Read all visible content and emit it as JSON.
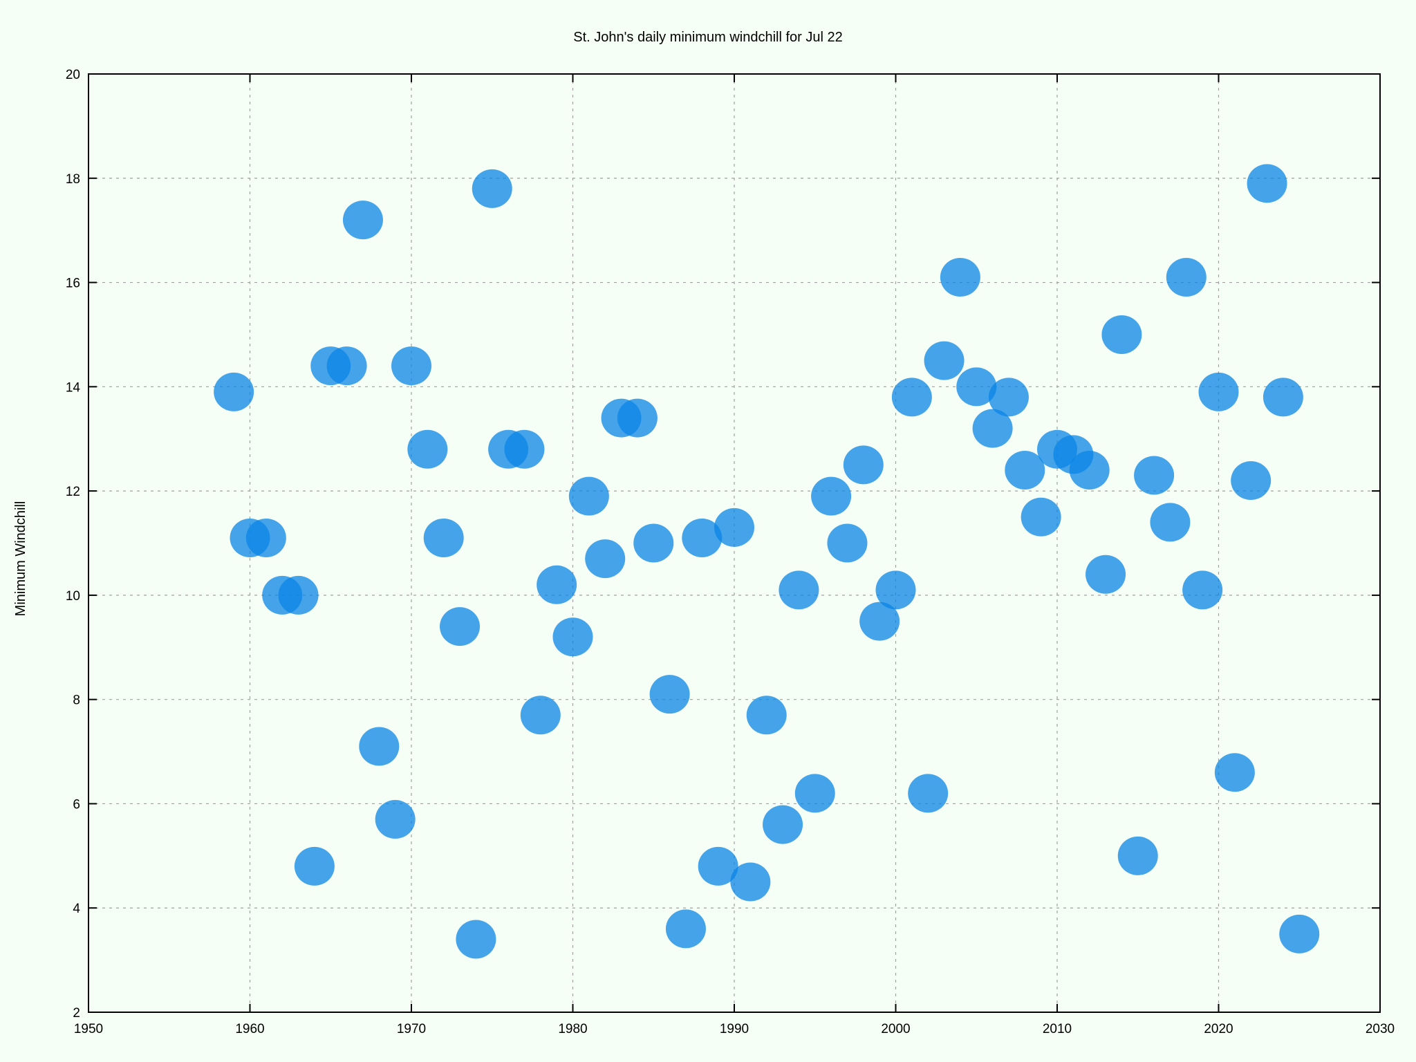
{
  "chart_data": {
    "type": "scatter",
    "title": "St. John's daily minimum windchill for Jul 22",
    "xlabel": "",
    "ylabel": "Minimum Windchill",
    "xlim": [
      1950,
      2030
    ],
    "ylim": [
      2,
      20
    ],
    "xticks": [
      1950,
      1960,
      1970,
      1980,
      1990,
      2000,
      2010,
      2020,
      2030
    ],
    "yticks": [
      2,
      4,
      6,
      8,
      10,
      12,
      14,
      16,
      18,
      20
    ],
    "grid": true,
    "point_color": "#0a84e6",
    "series": [
      {
        "x": [
          1959,
          1960,
          1961,
          1962,
          1963,
          1964,
          1965,
          1966,
          1967,
          1968,
          1969,
          1970,
          1971,
          1972,
          1973,
          1974,
          1975,
          1976,
          1977,
          1978,
          1979,
          1980,
          1981,
          1982,
          1983,
          1984,
          1985,
          1986,
          1987,
          1988,
          1989,
          1990,
          1991,
          1992,
          1993,
          1994,
          1995,
          1996,
          1997,
          1998,
          1999,
          2000,
          2001,
          2002,
          2003,
          2004,
          2005,
          2006,
          2007,
          2008,
          2009,
          2010,
          2011,
          2012,
          2013,
          2014,
          2015,
          2016,
          2017,
          2018,
          2019,
          2020,
          2021,
          2022,
          2023,
          2024,
          2025
        ],
        "y": [
          13.9,
          11.1,
          11.1,
          10.0,
          10.0,
          4.8,
          14.4,
          14.4,
          17.2,
          7.1,
          5.7,
          14.4,
          12.8,
          11.1,
          9.4,
          3.4,
          17.8,
          12.8,
          12.8,
          7.7,
          10.2,
          9.2,
          11.9,
          10.7,
          13.4,
          13.4,
          11.0,
          8.1,
          3.6,
          11.1,
          4.8,
          11.3,
          4.5,
          7.7,
          5.6,
          10.1,
          6.2,
          11.9,
          11.0,
          12.5,
          9.5,
          10.1,
          13.8,
          6.2,
          14.5,
          16.1,
          14.0,
          13.2,
          13.8,
          12.4,
          11.5,
          12.8,
          12.7,
          12.4,
          10.4,
          15.0,
          5.0,
          12.3,
          11.4,
          16.1,
          10.1,
          13.9,
          6.6,
          12.2,
          17.9,
          13.8,
          3.5
        ]
      }
    ]
  }
}
